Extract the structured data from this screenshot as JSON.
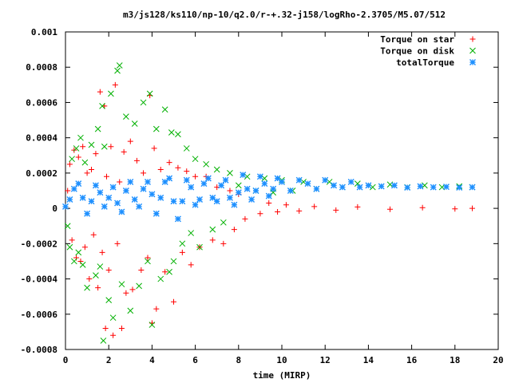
{
  "chart_data": {
    "type": "scatter",
    "title": "m3/js128/ks110/np-10/q2.0/r-+.32-j158/logRho-2.3705/M5.07/512",
    "xlabel": "time (MIRP)",
    "ylabel": "",
    "xlim": [
      0,
      20
    ],
    "ylim": [
      -0.0008,
      0.001
    ],
    "x_ticks": [
      "0",
      "2",
      "4",
      "6",
      "8",
      "10",
      "12",
      "14",
      "16",
      "18",
      "20"
    ],
    "x_tick_values": [
      0,
      2,
      4,
      6,
      8,
      10,
      12,
      14,
      16,
      18,
      20
    ],
    "y_ticks": [
      "-0.0008",
      "-0.0006",
      "-0.0004",
      "-0.0002",
      "0",
      "0.0002",
      "0.0004",
      "0.0006",
      "0.0008",
      "0.001"
    ],
    "y_tick_values": [
      -0.0008,
      -0.0006,
      -0.0004,
      -0.0002,
      0,
      0.0002,
      0.0004,
      0.0006,
      0.0008,
      0.001
    ],
    "legend_position": "top-right",
    "grid": false,
    "series": [
      {
        "name": "Torque on star",
        "marker": "plus",
        "color": "#ff0000",
        "points": [
          [
            0.1,
            0.0001
          ],
          [
            0.2,
            0.00025
          ],
          [
            0.3,
            -0.00018
          ],
          [
            0.4,
            0.00033
          ],
          [
            0.5,
            -0.00028
          ],
          [
            0.6,
            0.00029
          ],
          [
            0.7,
            -0.0003
          ],
          [
            0.8,
            0.00035
          ],
          [
            0.9,
            -0.00022
          ],
          [
            1.0,
            0.0002
          ],
          [
            1.1,
            -0.0004
          ],
          [
            1.2,
            0.00022
          ],
          [
            1.3,
            -0.00015
          ],
          [
            1.4,
            0.00031
          ],
          [
            1.5,
            -0.00045
          ],
          [
            1.6,
            0.00066
          ],
          [
            1.7,
            -0.00025
          ],
          [
            1.8,
            0.00058
          ],
          [
            1.85,
            -0.00068
          ],
          [
            1.9,
            0.00018
          ],
          [
            2.0,
            -0.00035
          ],
          [
            2.1,
            0.00035
          ],
          [
            2.2,
            -0.00072
          ],
          [
            2.3,
            0.0007
          ],
          [
            2.4,
            -0.0002
          ],
          [
            2.5,
            0.00015
          ],
          [
            2.6,
            -0.00068
          ],
          [
            2.7,
            0.00032
          ],
          [
            2.8,
            -0.00048
          ],
          [
            3.0,
            0.00038
          ],
          [
            3.1,
            -0.00046
          ],
          [
            3.3,
            0.00027
          ],
          [
            3.5,
            -0.00035
          ],
          [
            3.6,
            0.0002
          ],
          [
            3.8,
            -0.00028
          ],
          [
            3.9,
            0.00064
          ],
          [
            4.0,
            -0.00065
          ],
          [
            4.1,
            0.00034
          ],
          [
            4.2,
            -0.00057
          ],
          [
            4.4,
            0.00022
          ],
          [
            4.6,
            -0.00036
          ],
          [
            4.8,
            0.00026
          ],
          [
            5.0,
            -0.00053
          ],
          [
            5.2,
            0.00023
          ],
          [
            5.4,
            -0.00025
          ],
          [
            5.6,
            0.00021
          ],
          [
            5.8,
            -0.00032
          ],
          [
            6.0,
            0.00018
          ],
          [
            6.2,
            -0.00022
          ],
          [
            6.5,
            0.00018
          ],
          [
            6.8,
            -0.00018
          ],
          [
            7.0,
            0.00012
          ],
          [
            7.3,
            -0.0002
          ],
          [
            7.6,
            0.0001
          ],
          [
            7.8,
            -0.00012
          ],
          [
            8.0,
            8e-05
          ],
          [
            8.3,
            -6e-05
          ],
          [
            8.6,
            5e-05
          ],
          [
            9.0,
            -3e-05
          ],
          [
            9.4,
            3e-05
          ],
          [
            9.8,
            -2e-05
          ],
          [
            10.2,
            2e-05
          ],
          [
            10.8,
            -1.5e-05
          ],
          [
            11.5,
            1e-05
          ],
          [
            12.5,
            -1e-05
          ],
          [
            13.5,
            8e-06
          ],
          [
            15.0,
            -5e-06
          ],
          [
            16.5,
            4e-06
          ],
          [
            18.0,
            -3e-06
          ],
          [
            18.8,
            0.0
          ]
        ]
      },
      {
        "name": "Torque on disk",
        "marker": "cross",
        "color": "#00b000",
        "points": [
          [
            0.1,
            -0.0001
          ],
          [
            0.2,
            -0.00022
          ],
          [
            0.3,
            0.00028
          ],
          [
            0.4,
            -0.0003
          ],
          [
            0.5,
            0.00034
          ],
          [
            0.6,
            -0.00025
          ],
          [
            0.7,
            0.0004
          ],
          [
            0.8,
            -0.00032
          ],
          [
            0.9,
            0.00026
          ],
          [
            1.0,
            -0.00045
          ],
          [
            1.2,
            0.00036
          ],
          [
            1.4,
            -0.00038
          ],
          [
            1.5,
            0.00045
          ],
          [
            1.6,
            -0.00033
          ],
          [
            1.7,
            0.00058
          ],
          [
            1.75,
            -0.00075
          ],
          [
            1.8,
            0.00035
          ],
          [
            2.0,
            -0.00052
          ],
          [
            2.1,
            0.00065
          ],
          [
            2.2,
            -0.00062
          ],
          [
            2.4,
            0.00078
          ],
          [
            2.5,
            0.00081
          ],
          [
            2.6,
            -0.00043
          ],
          [
            2.8,
            0.00052
          ],
          [
            3.0,
            -0.00058
          ],
          [
            3.2,
            0.00048
          ],
          [
            3.4,
            -0.00044
          ],
          [
            3.6,
            0.0006
          ],
          [
            3.8,
            -0.0003
          ],
          [
            3.9,
            0.00065
          ],
          [
            4.0,
            -0.00066
          ],
          [
            4.2,
            0.00045
          ],
          [
            4.4,
            -0.0004
          ],
          [
            4.6,
            0.00056
          ],
          [
            4.8,
            -0.00036
          ],
          [
            4.9,
            0.00043
          ],
          [
            5.0,
            -0.0003
          ],
          [
            5.2,
            0.00042
          ],
          [
            5.4,
            -0.0002
          ],
          [
            5.6,
            0.00034
          ],
          [
            5.8,
            -0.00014
          ],
          [
            6.0,
            0.00028
          ],
          [
            6.2,
            -0.00022
          ],
          [
            6.5,
            0.00025
          ],
          [
            6.8,
            -0.00012
          ],
          [
            7.0,
            0.00022
          ],
          [
            7.3,
            -8e-05
          ],
          [
            7.6,
            0.0002
          ],
          [
            8.0,
            0.00013
          ],
          [
            8.4,
            0.00018
          ],
          [
            8.8,
            0.0001
          ],
          [
            9.2,
            0.00017
          ],
          [
            9.6,
            9e-05
          ],
          [
            10.0,
            0.00016
          ],
          [
            10.5,
            0.0001
          ],
          [
            11.0,
            0.00015
          ],
          [
            11.6,
            0.00011
          ],
          [
            12.2,
            0.00015
          ],
          [
            12.8,
            0.00012
          ],
          [
            13.5,
            0.00014
          ],
          [
            14.2,
            0.00012
          ],
          [
            15.0,
            0.000135
          ],
          [
            15.8,
            0.00012
          ],
          [
            16.6,
            0.00013
          ],
          [
            17.4,
            0.00012
          ],
          [
            18.2,
            0.000125
          ],
          [
            18.8,
            0.00012
          ]
        ]
      },
      {
        "name": "totalTorque",
        "marker": "star",
        "color": "#1e90ff",
        "points": [
          [
            0.0,
            1e-05
          ],
          [
            0.2,
            5e-05
          ],
          [
            0.4,
            0.00011
          ],
          [
            0.6,
            0.00014
          ],
          [
            0.8,
            6e-05
          ],
          [
            1.0,
            -3e-05
          ],
          [
            1.2,
            4e-05
          ],
          [
            1.4,
            0.00013
          ],
          [
            1.6,
            9e-05
          ],
          [
            1.8,
            1e-05
          ],
          [
            2.0,
            6e-05
          ],
          [
            2.2,
            0.00012
          ],
          [
            2.4,
            3e-05
          ],
          [
            2.6,
            -2e-05
          ],
          [
            2.8,
            0.0001
          ],
          [
            3.0,
            0.00015
          ],
          [
            3.2,
            5e-05
          ],
          [
            3.4,
            1e-05
          ],
          [
            3.6,
            0.00011
          ],
          [
            3.8,
            0.00015
          ],
          [
            4.0,
            8e-05
          ],
          [
            4.2,
            -3e-05
          ],
          [
            4.4,
            6e-05
          ],
          [
            4.6,
            0.00015
          ],
          [
            4.8,
            0.00017
          ],
          [
            5.0,
            4e-05
          ],
          [
            5.2,
            -6e-05
          ],
          [
            5.4,
            4e-05
          ],
          [
            5.6,
            0.00016
          ],
          [
            5.8,
            0.00012
          ],
          [
            6.0,
            2e-05
          ],
          [
            6.2,
            5e-05
          ],
          [
            6.4,
            0.00014
          ],
          [
            6.6,
            0.00017
          ],
          [
            6.8,
            6e-05
          ],
          [
            7.0,
            4e-05
          ],
          [
            7.2,
            0.00013
          ],
          [
            7.4,
            0.00016
          ],
          [
            7.6,
            6e-05
          ],
          [
            7.8,
            2e-05
          ],
          [
            8.0,
            9e-05
          ],
          [
            8.2,
            0.00019
          ],
          [
            8.4,
            0.00011
          ],
          [
            8.6,
            5e-05
          ],
          [
            8.8,
            0.0001
          ],
          [
            9.0,
            0.00018
          ],
          [
            9.2,
            0.00014
          ],
          [
            9.4,
            7e-05
          ],
          [
            9.6,
            0.00011
          ],
          [
            9.8,
            0.00017
          ],
          [
            10.0,
            0.00015
          ],
          [
            10.4,
            0.0001
          ],
          [
            10.8,
            0.00016
          ],
          [
            11.2,
            0.00014
          ],
          [
            11.6,
            0.00011
          ],
          [
            12.0,
            0.00016
          ],
          [
            12.4,
            0.00013
          ],
          [
            12.8,
            0.00012
          ],
          [
            13.2,
            0.00015
          ],
          [
            13.6,
            0.00012
          ],
          [
            14.0,
            0.00013
          ],
          [
            14.6,
            0.000125
          ],
          [
            15.2,
            0.00013
          ],
          [
            15.8,
            0.000118
          ],
          [
            16.4,
            0.000125
          ],
          [
            17.0,
            0.00012
          ],
          [
            17.6,
            0.000122
          ],
          [
            18.2,
            0.000118
          ],
          [
            18.8,
            0.00012
          ]
        ]
      }
    ]
  }
}
